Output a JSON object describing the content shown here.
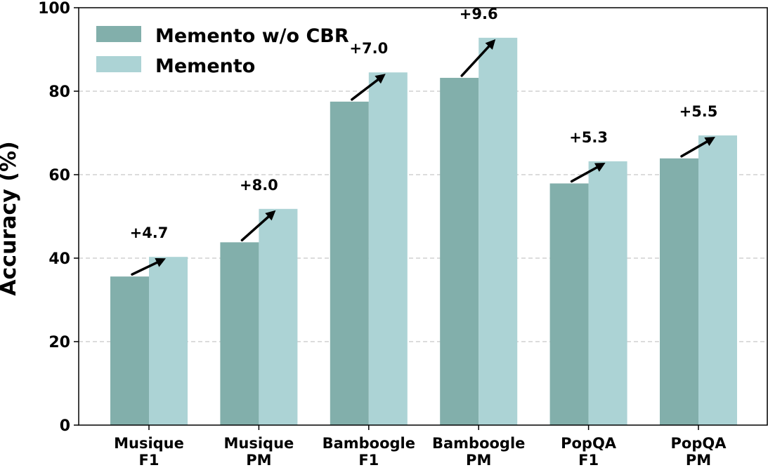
{
  "chart_data": {
    "type": "bar",
    "categories": [
      [
        "Musique",
        "F1"
      ],
      [
        "Musique",
        "PM"
      ],
      [
        "Bamboogle",
        "F1"
      ],
      [
        "Bamboogle",
        "PM"
      ],
      [
        "PopQA",
        "F1"
      ],
      [
        "PopQA",
        "PM"
      ]
    ],
    "series": [
      {
        "name": "Memento w/o CBR",
        "color": "#82afab",
        "values": [
          35.6,
          43.8,
          77.5,
          83.2,
          57.9,
          63.9
        ]
      },
      {
        "name": "Memento",
        "color": "#acd3d5",
        "values": [
          40.3,
          51.8,
          84.5,
          92.8,
          63.2,
          69.4
        ]
      }
    ],
    "annotations": [
      "+4.7",
      "+8.0",
      "+7.0",
      "+9.6",
      "+5.3",
      "+5.5"
    ],
    "ylabel": "Accuracy (%)",
    "xlabel": "",
    "title": "",
    "ylim": [
      0,
      100
    ],
    "yticks": [
      0,
      20,
      40,
      60,
      80,
      100
    ],
    "grid": "y-dashed",
    "legend_position": "top-left"
  }
}
